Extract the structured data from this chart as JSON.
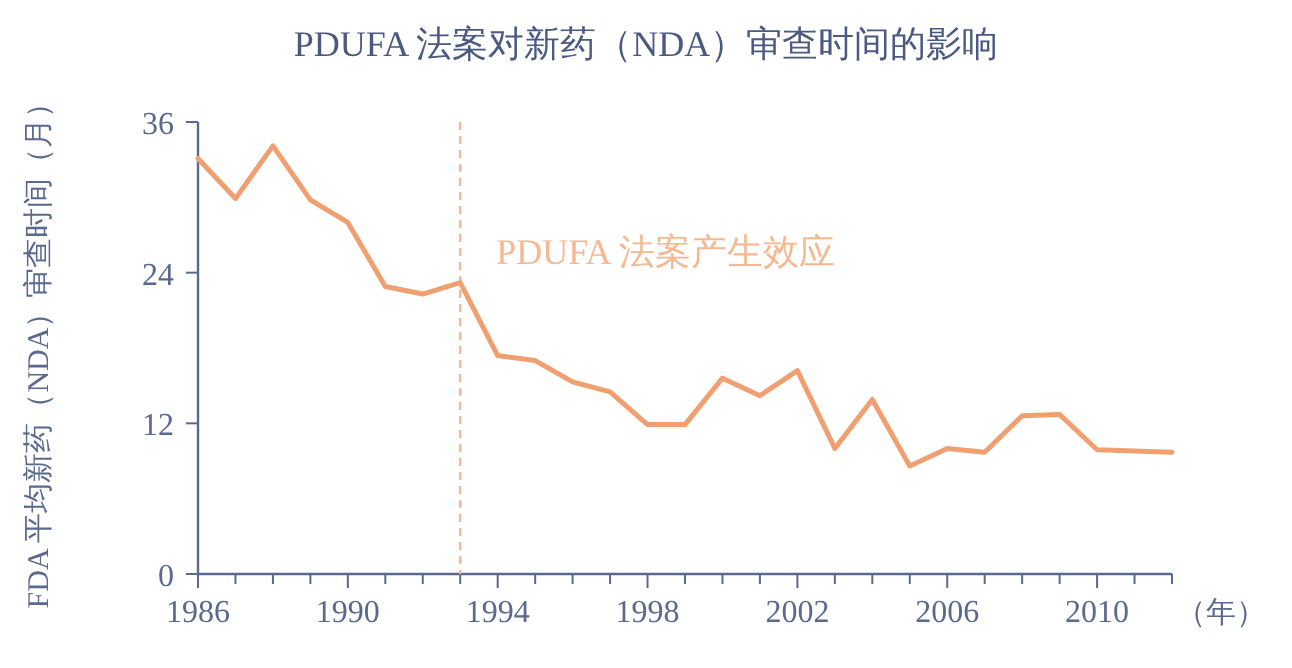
{
  "chart_data": {
    "type": "line",
    "title": "PDUFA 法案对新药（NDA）审查时间的影响",
    "xlabel": "（年）",
    "ylabel": "FDA 平均新药（NDA）审查时间（月）",
    "x": [
      1986,
      1987,
      1988,
      1989,
      1990,
      1991,
      1992,
      1993,
      1994,
      1995,
      1996,
      1997,
      1998,
      1999,
      2000,
      2001,
      2002,
      2003,
      2004,
      2005,
      2006,
      2007,
      2008,
      2009,
      2010,
      2011,
      2012
    ],
    "series": [
      {
        "color": "#f0a070",
        "values": [
          33.1,
          29.9,
          34.1,
          29.8,
          28.0,
          22.9,
          22.3,
          23.2,
          17.4,
          17.0,
          15.3,
          14.5,
          11.9,
          11.9,
          15.6,
          14.2,
          16.2,
          10.0,
          13.9,
          8.6,
          10.0,
          9.7,
          12.6,
          12.7,
          9.9,
          9.8,
          9.7
        ]
      }
    ],
    "xlim": [
      1986,
      2012
    ],
    "ylim": [
      0,
      36
    ],
    "xticks": [
      1986,
      {
        "value": 1987,
        "label": null
      },
      {
        "value": 1988,
        "label": null
      },
      {
        "value": 1989,
        "label": null
      },
      1990,
      {
        "value": 1991,
        "label": null
      },
      {
        "value": 1992,
        "label": null
      },
      {
        "value": 1993,
        "label": null
      },
      1994,
      {
        "value": 1995,
        "label": null
      },
      {
        "value": 1996,
        "label": null
      },
      {
        "value": 1997,
        "label": null
      },
      1998,
      {
        "value": 1999,
        "label": null
      },
      {
        "value": 2000,
        "label": null
      },
      {
        "value": 2001,
        "label": null
      },
      2002,
      {
        "value": 2003,
        "label": null
      },
      {
        "value": 2004,
        "label": null
      },
      {
        "value": 2005,
        "label": null
      },
      2006,
      {
        "value": 2007,
        "label": null
      },
      {
        "value": 2008,
        "label": null
      },
      {
        "value": 2009,
        "label": null
      },
      2010,
      {
        "value": 2011,
        "label": null
      },
      {
        "value": 2012,
        "label": null
      }
    ],
    "yticks": [
      0,
      12,
      24,
      36
    ],
    "ref_lines": [
      {
        "axis": "x",
        "value": 1993,
        "label": "PDUFA 法案产生效应",
        "color": "#f5b890",
        "line_style": "dashed"
      }
    ],
    "grid": false,
    "marker": "none",
    "line_style": "solid"
  }
}
